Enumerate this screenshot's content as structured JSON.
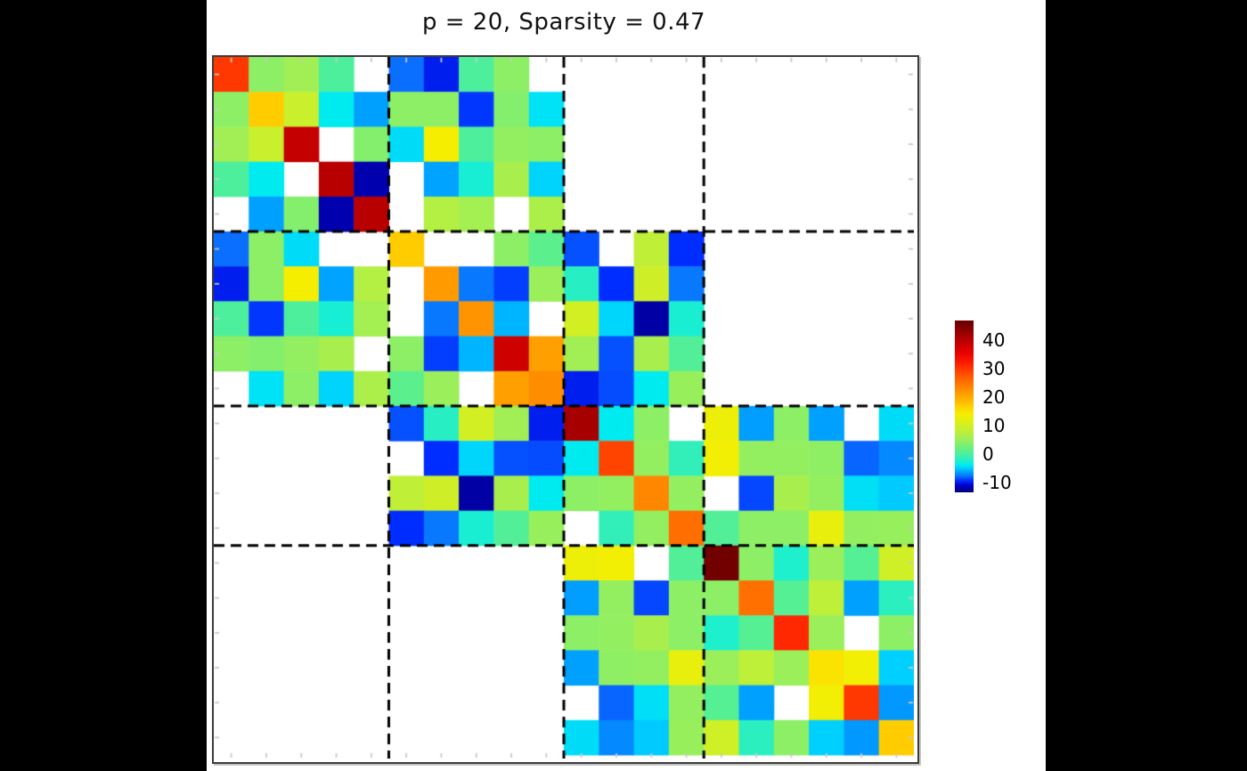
{
  "figure": {
    "title": "p = 20, Sparsity = 0.47",
    "background_color": "#ffffff",
    "letterbox_color": "#000000"
  },
  "chart_data": {
    "type": "heatmap",
    "title": "p = 20, Sparsity = 0.47",
    "p": 20,
    "sparsity": 0.47,
    "rows": 20,
    "cols": 20,
    "masked_value_color": "#ffffff",
    "masked_meaning": "exact zero entry",
    "block_boundaries_after_index": [
      5,
      10,
      14
    ],
    "grid_line_style": "black dashed",
    "colorbar": {
      "ticks": [
        40,
        30,
        20,
        10,
        0,
        -10
      ],
      "vmin": -13.4,
      "vmax": 46.8,
      "position": "right"
    },
    "colormap_stops": [
      [
        -13.4,
        [
          0,
          0,
          130
        ]
      ],
      [
        -11,
        [
          0,
          0,
          205
        ]
      ],
      [
        -9.5,
        [
          0,
          45,
          255
        ]
      ],
      [
        -8,
        [
          10,
          110,
          255
        ]
      ],
      [
        -6.5,
        [
          0,
          160,
          255
        ]
      ],
      [
        -5,
        [
          0,
          205,
          255
        ]
      ],
      [
        -4,
        [
          0,
          235,
          240
        ]
      ],
      [
        -2.5,
        [
          30,
          239,
          205
        ]
      ],
      [
        -1,
        [
          60,
          239,
          175
        ]
      ],
      [
        0.5,
        [
          85,
          239,
          148
        ]
      ],
      [
        2,
        [
          105,
          239,
          128
        ]
      ],
      [
        4,
        [
          140,
          239,
          102
        ]
      ],
      [
        6,
        [
          168,
          239,
          78
        ]
      ],
      [
        8,
        [
          192,
          239,
          55
        ]
      ],
      [
        10,
        [
          210,
          239,
          35
        ]
      ],
      [
        12,
        [
          228,
          239,
          16
        ]
      ],
      [
        14,
        [
          246,
          238,
          0
        ]
      ],
      [
        16.5,
        [
          255,
          210,
          0
        ]
      ],
      [
        18.5,
        [
          255,
          185,
          0
        ]
      ],
      [
        21,
        [
          255,
          160,
          0
        ]
      ],
      [
        23,
        [
          255,
          135,
          0
        ]
      ],
      [
        25.5,
        [
          255,
          110,
          0
        ]
      ],
      [
        28,
        [
          255,
          80,
          0
        ]
      ],
      [
        30,
        [
          255,
          55,
          0
        ]
      ],
      [
        31,
        [
          255,
          40,
          0
        ]
      ],
      [
        33,
        [
          248,
          20,
          0
        ]
      ],
      [
        36,
        [
          228,
          0,
          0
        ]
      ],
      [
        40,
        [
          185,
          0,
          0
        ]
      ],
      [
        43,
        [
          148,
          0,
          0
        ]
      ],
      [
        46.8,
        [
          105,
          0,
          0
        ]
      ]
    ],
    "matrix": [
      [
        30,
        4,
        5.5,
        0,
        null,
        -8,
        -10,
        0,
        4,
        null,
        null,
        null,
        null,
        null,
        null,
        null,
        null,
        null,
        null,
        null
      ],
      [
        4,
        17,
        9,
        -4,
        -6.5,
        4,
        4,
        -9.3,
        3.5,
        -4.3,
        null,
        null,
        null,
        null,
        null,
        null,
        null,
        null,
        null,
        null
      ],
      [
        5.5,
        9,
        39,
        null,
        3.5,
        -4.5,
        14,
        0,
        4.5,
        4,
        null,
        null,
        null,
        null,
        null,
        null,
        null,
        null,
        null,
        null
      ],
      [
        0,
        -4,
        null,
        40,
        -12,
        null,
        -6.4,
        -2.8,
        6,
        -4.8,
        null,
        null,
        null,
        null,
        null,
        null,
        null,
        null,
        null,
        null
      ],
      [
        null,
        -6.5,
        3.5,
        -12,
        40,
        null,
        7,
        5.7,
        null,
        6.3,
        null,
        null,
        null,
        null,
        null,
        null,
        null,
        null,
        null,
        null
      ],
      [
        -8,
        4,
        -4.5,
        null,
        null,
        17,
        null,
        null,
        4,
        1,
        -8.7,
        null,
        8,
        -9.5,
        null,
        null,
        null,
        null,
        null,
        null
      ],
      [
        -10,
        4,
        14,
        -6.4,
        7,
        null,
        21.5,
        -7.7,
        -9.1,
        5,
        -2,
        -9.5,
        9.5,
        -7.7,
        null,
        null,
        null,
        null,
        null,
        null
      ],
      [
        0,
        -9.3,
        0,
        -2.8,
        5.7,
        null,
        -7.7,
        22,
        -5.8,
        null,
        10,
        -4.7,
        -12.3,
        -2.7,
        null,
        null,
        null,
        null,
        null,
        null
      ],
      [
        4,
        3.5,
        4.5,
        6,
        null,
        4,
        -9.1,
        -5.8,
        38,
        21,
        5.5,
        -8.7,
        6,
        0.3,
        null,
        null,
        null,
        null,
        null,
        null
      ],
      [
        null,
        -4.3,
        4,
        -4.8,
        6.3,
        1,
        5,
        null,
        21,
        22.5,
        -10,
        -8.8,
        -4,
        4.8,
        null,
        null,
        null,
        null,
        null,
        null
      ],
      [
        null,
        null,
        null,
        null,
        null,
        -8.7,
        -2,
        10,
        5.5,
        -10,
        41.5,
        -4,
        4,
        null,
        13,
        -6.6,
        4,
        -6.5,
        null,
        -4.5
      ],
      [
        null,
        null,
        null,
        null,
        null,
        null,
        -9.5,
        -4.7,
        -8.7,
        -8.8,
        -4,
        29,
        4.5,
        -1.5,
        13.5,
        4.5,
        4.5,
        4.2,
        -8.2,
        -7.2
      ],
      [
        null,
        null,
        null,
        null,
        null,
        8,
        9.5,
        -12.3,
        6,
        -4,
        4,
        4.5,
        23,
        4.5,
        null,
        -8.9,
        6,
        4.5,
        -4.4,
        -5.1
      ],
      [
        null,
        null,
        null,
        null,
        null,
        -9.5,
        -7.7,
        -2.7,
        0.3,
        4.8,
        null,
        -1.5,
        4.5,
        25.5,
        0.3,
        4,
        4,
        12.5,
        4.5,
        4.8
      ],
      [
        null,
        null,
        null,
        null,
        null,
        null,
        null,
        null,
        null,
        null,
        13,
        13.5,
        null,
        0.3,
        46,
        4,
        -2.5,
        5,
        0.5,
        9.7
      ],
      [
        null,
        null,
        null,
        null,
        null,
        null,
        null,
        null,
        null,
        null,
        -6.6,
        4.5,
        -8.9,
        4,
        4,
        25.3,
        0.5,
        7.8,
        -6.5,
        -1.8
      ],
      [
        null,
        null,
        null,
        null,
        null,
        null,
        null,
        null,
        null,
        null,
        4,
        4.5,
        6,
        4,
        -2.5,
        0.5,
        31,
        5,
        null,
        4
      ],
      [
        null,
        null,
        null,
        null,
        null,
        null,
        null,
        null,
        null,
        null,
        -6.5,
        4.2,
        4.5,
        12.5,
        5,
        7.8,
        5,
        15,
        13.5,
        -4.9
      ],
      [
        null,
        null,
        null,
        null,
        null,
        null,
        null,
        null,
        null,
        null,
        null,
        -8.2,
        -4.4,
        4.5,
        0.5,
        -6.5,
        null,
        13.5,
        30,
        -6.7
      ],
      [
        null,
        null,
        null,
        null,
        null,
        null,
        null,
        null,
        null,
        null,
        -4.5,
        -7.2,
        -5.1,
        4.8,
        9.7,
        -1.8,
        4,
        -4.9,
        -6.7,
        17
      ]
    ]
  }
}
